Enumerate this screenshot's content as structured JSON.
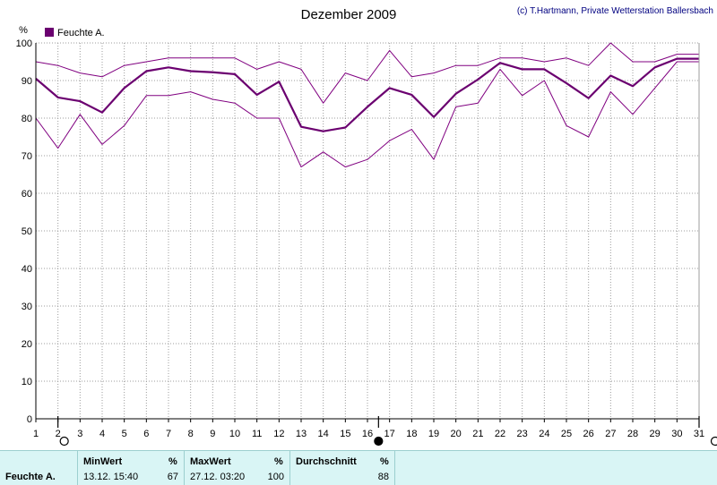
{
  "chart_data": {
    "type": "line",
    "title": "Dezember 2009",
    "credit": "(c) T.Hartmann, Private Wetterstation Ballersbach",
    "ylabel": "%",
    "ylim": [
      0,
      100
    ],
    "yticks": [
      0,
      10,
      20,
      30,
      40,
      50,
      60,
      70,
      80,
      90,
      100
    ],
    "xlim": [
      1,
      31
    ],
    "categories": [
      1,
      2,
      3,
      4,
      5,
      6,
      7,
      8,
      9,
      10,
      11,
      12,
      13,
      14,
      15,
      16,
      17,
      18,
      19,
      20,
      21,
      22,
      23,
      24,
      25,
      26,
      27,
      28,
      29,
      30,
      31
    ],
    "legend": {
      "label": "Feuchte A.",
      "color": "#6b0070",
      "position": "top-left"
    },
    "grid": true,
    "series": [
      {
        "name": "Feuchte A.",
        "role": "max",
        "color": "#800080",
        "values": [
          95,
          94,
          92,
          91,
          94,
          95,
          96,
          96,
          96,
          96,
          93,
          95,
          93,
          84,
          92,
          90,
          98,
          91,
          92,
          94,
          94,
          96,
          96,
          95,
          96,
          94,
          100,
          95,
          95,
          97,
          97
        ]
      },
      {
        "name": "Feuchte A.",
        "role": "mean",
        "color": "#6b0070",
        "values": [
          90.5,
          85.5,
          84.5,
          81.5,
          88,
          92.5,
          93.5,
          92.5,
          92.2,
          91.7,
          86.2,
          89.7,
          77.7,
          76.5,
          77.5,
          83,
          88,
          86.2,
          80.3,
          86.5,
          90.3,
          94.7,
          93,
          93,
          89.3,
          85.3,
          91.3,
          88.5,
          93.5,
          95.8,
          95.8
        ]
      },
      {
        "name": "Feuchte A.",
        "role": "min",
        "color": "#800080",
        "values": [
          80,
          72,
          81,
          73,
          78,
          86,
          86,
          87,
          85,
          84,
          80,
          80,
          67,
          71,
          67,
          69,
          74,
          77,
          69,
          83,
          84,
          93,
          86,
          90,
          78,
          75,
          87,
          81,
          88,
          95,
          95
        ]
      }
    ],
    "markers": [
      {
        "type": "new-moon-outline",
        "x": 2
      },
      {
        "type": "full-moon-filled",
        "x": 16.5
      },
      {
        "type": "new-moon-outline",
        "x": 31
      }
    ]
  },
  "stats": {
    "series_label": "Feuchte A.",
    "min": {
      "header": "MinWert",
      "unit": "%",
      "datetime": "13.12.  15:40",
      "value": "67"
    },
    "max": {
      "header": "MaxWert",
      "unit": "%",
      "datetime": "27.12.  03:20",
      "value": "100"
    },
    "avg": {
      "header": "Durchschnitt",
      "unit": "%",
      "value": "88"
    }
  },
  "colors": {
    "plot_bg": "#ffffff",
    "grid": "#9c9c9c",
    "panel_bg": "#d9f5f5",
    "line": "#800080",
    "line_mean": "#6b0070"
  }
}
